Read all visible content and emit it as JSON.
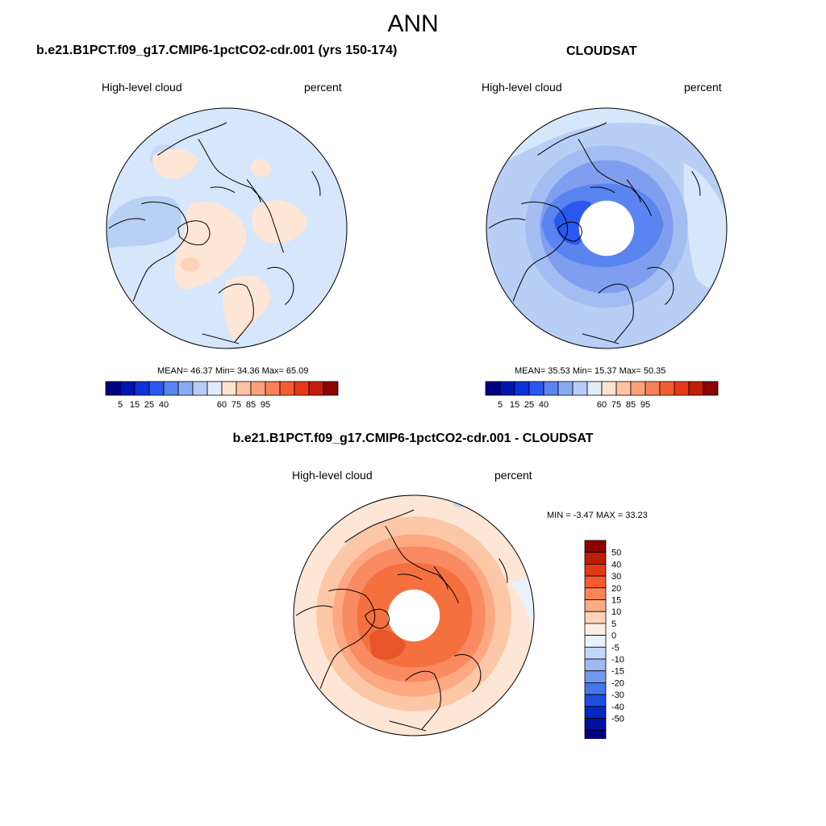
{
  "title": "ANN",
  "panels": [
    {
      "id": "model",
      "title": "b.e21.B1PCT.f09_g17.CMIP6-1pctCO2-cdr.001 (yrs 150-174)",
      "variable": "High-level cloud",
      "units": "percent",
      "stats": "MEAN=  46.37  Min=  34.36  Max=  65.09",
      "mean": 46.37,
      "min": 34.36,
      "max": 65.09
    },
    {
      "id": "obs",
      "title": "CLOUDSAT",
      "variable": "High-level cloud",
      "units": "percent",
      "stats": "MEAN=  35.53  Min=  15.37  Max=  50.35",
      "mean": 35.53,
      "min": 15.37,
      "max": 50.35
    },
    {
      "id": "diff",
      "title": "b.e21.B1PCT.f09_g17.CMIP6-1pctCO2-cdr.001 - CLOUDSAT",
      "variable": "High-level cloud",
      "units": "percent",
      "stats": "MIN =  -3.47 MAX =  33.23",
      "min": -3.47,
      "max": 33.23
    }
  ],
  "colorbar_abs": {
    "colors": [
      "#00007f",
      "#0015b0",
      "#0a34d8",
      "#2a58ee",
      "#5a84f0",
      "#8aaaf2",
      "#b8cdf6",
      "#e1ecfb",
      "#fde3cf",
      "#fcc3a4",
      "#fba27d",
      "#f98058",
      "#f55c33",
      "#e63a17",
      "#c21d07",
      "#8c0400"
    ],
    "labels": [
      "5",
      "15",
      "25",
      "40",
      "60",
      "75",
      "85",
      "95"
    ]
  },
  "colorbar_diff": {
    "colors": [
      "#8c0400",
      "#bf1d06",
      "#e33a14",
      "#f75a30",
      "#fa8457",
      "#fcac85",
      "#fdd4b8",
      "#fdeee4",
      "#e9f1fc",
      "#c3d6f7",
      "#9dbaf3",
      "#7399ef",
      "#4776ec",
      "#1c4ee0",
      "#0628c0",
      "#0010a0",
      "#00007f"
    ],
    "labels": [
      "50",
      "40",
      "30",
      "20",
      "15",
      "10",
      "5",
      "0",
      "-5",
      "-10",
      "-15",
      "-20",
      "-30",
      "-40",
      "-50"
    ]
  },
  "colors": {
    "coastline": "#000000",
    "polar_hole": "#ffffff"
  }
}
